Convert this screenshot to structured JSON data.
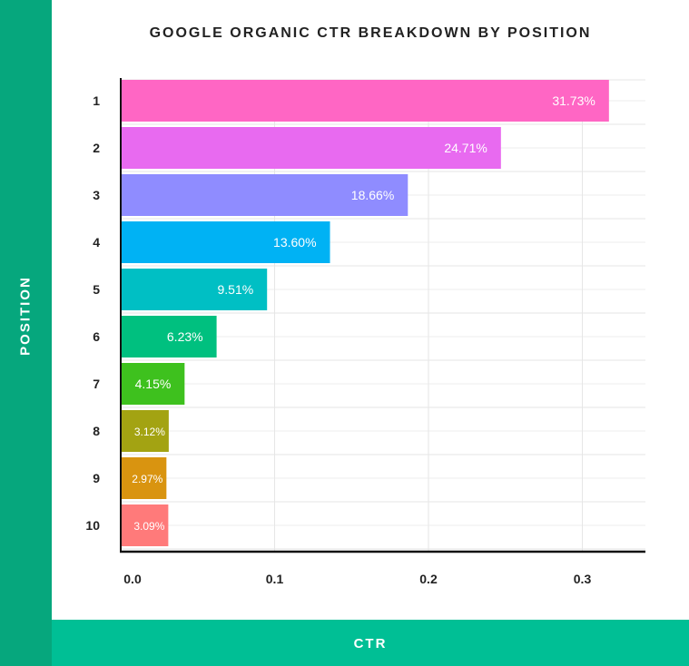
{
  "chart_data": {
    "type": "bar",
    "orientation": "horizontal",
    "title": "GOOGLE ORGANIC CTR BREAKDOWN BY POSITION",
    "xlabel": "CTR",
    "ylabel": "POSITION",
    "categories": [
      "1",
      "2",
      "3",
      "4",
      "5",
      "6",
      "7",
      "8",
      "9",
      "10"
    ],
    "values": [
      0.3173,
      0.2471,
      0.1866,
      0.136,
      0.0951,
      0.0623,
      0.0415,
      0.0312,
      0.0297,
      0.0309
    ],
    "value_labels": [
      "31.73%",
      "24.71%",
      "18.66%",
      "13.60%",
      "9.51%",
      "6.23%",
      "4.15%",
      "3.12%",
      "2.97%",
      "3.09%"
    ],
    "colors": [
      "#ff66c4",
      "#e86af0",
      "#8f8cff",
      "#00b2f4",
      "#00bfc4",
      "#00c07f",
      "#3ec11e",
      "#a3a312",
      "#d99410",
      "#ff7a7a"
    ],
    "xlim": [
      0,
      0.35
    ],
    "xticks": [
      0,
      0.1,
      0.2,
      0.3
    ],
    "xtick_labels": [
      "0.0",
      "0.1",
      "0.2",
      "0.3"
    ],
    "grid": true,
    "legend": "none"
  }
}
